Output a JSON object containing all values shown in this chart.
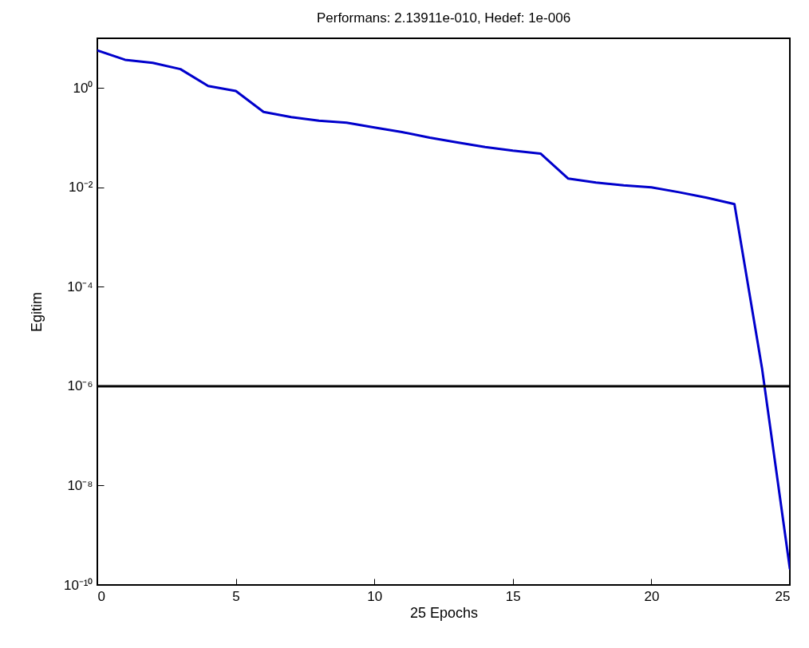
{
  "chart_data": {
    "type": "line",
    "title": "Performans: 2.13911e-010, Hedef: 1e-006",
    "xlabel": "25 Epochs",
    "ylabel": "Egitim",
    "x": [
      0,
      1,
      2,
      3,
      4,
      5,
      6,
      7,
      8,
      9,
      10,
      11,
      12,
      13,
      14,
      15,
      16,
      17,
      18,
      19,
      20,
      21,
      22,
      23,
      24,
      25
    ],
    "series": [
      {
        "color": "#0000cc",
        "values": [
          5.7,
          3.7,
          3.2,
          2.4,
          1.1,
          0.87,
          0.33,
          0.26,
          0.22,
          0.2,
          0.16,
          0.13,
          0.1,
          0.08,
          0.065,
          0.055,
          0.048,
          0.015,
          0.0125,
          0.011,
          0.01,
          0.008,
          0.0062,
          0.0046,
          2.2e-06,
          2.13911e-10
        ]
      }
    ],
    "log": "y",
    "xlim": [
      0,
      25
    ],
    "xticks": [
      0,
      5,
      10,
      15,
      20,
      25
    ],
    "ylim": [
      1e-10,
      10
    ],
    "yticks": [
      {
        "value": 1e-10,
        "label": "10⁻¹⁰"
      },
      {
        "value": 1e-08,
        "label": "10⁻⁸"
      },
      {
        "value": 1e-06,
        "label": "10⁻⁶"
      },
      {
        "value": 0.0001,
        "label": "10⁻⁴"
      },
      {
        "value": 0.01,
        "label": "10⁻²"
      },
      {
        "value": 1,
        "label": "10⁰"
      }
    ],
    "ref_lines": [
      {
        "axis": "y",
        "value": 1e-06,
        "color": "#000000"
      }
    ]
  }
}
